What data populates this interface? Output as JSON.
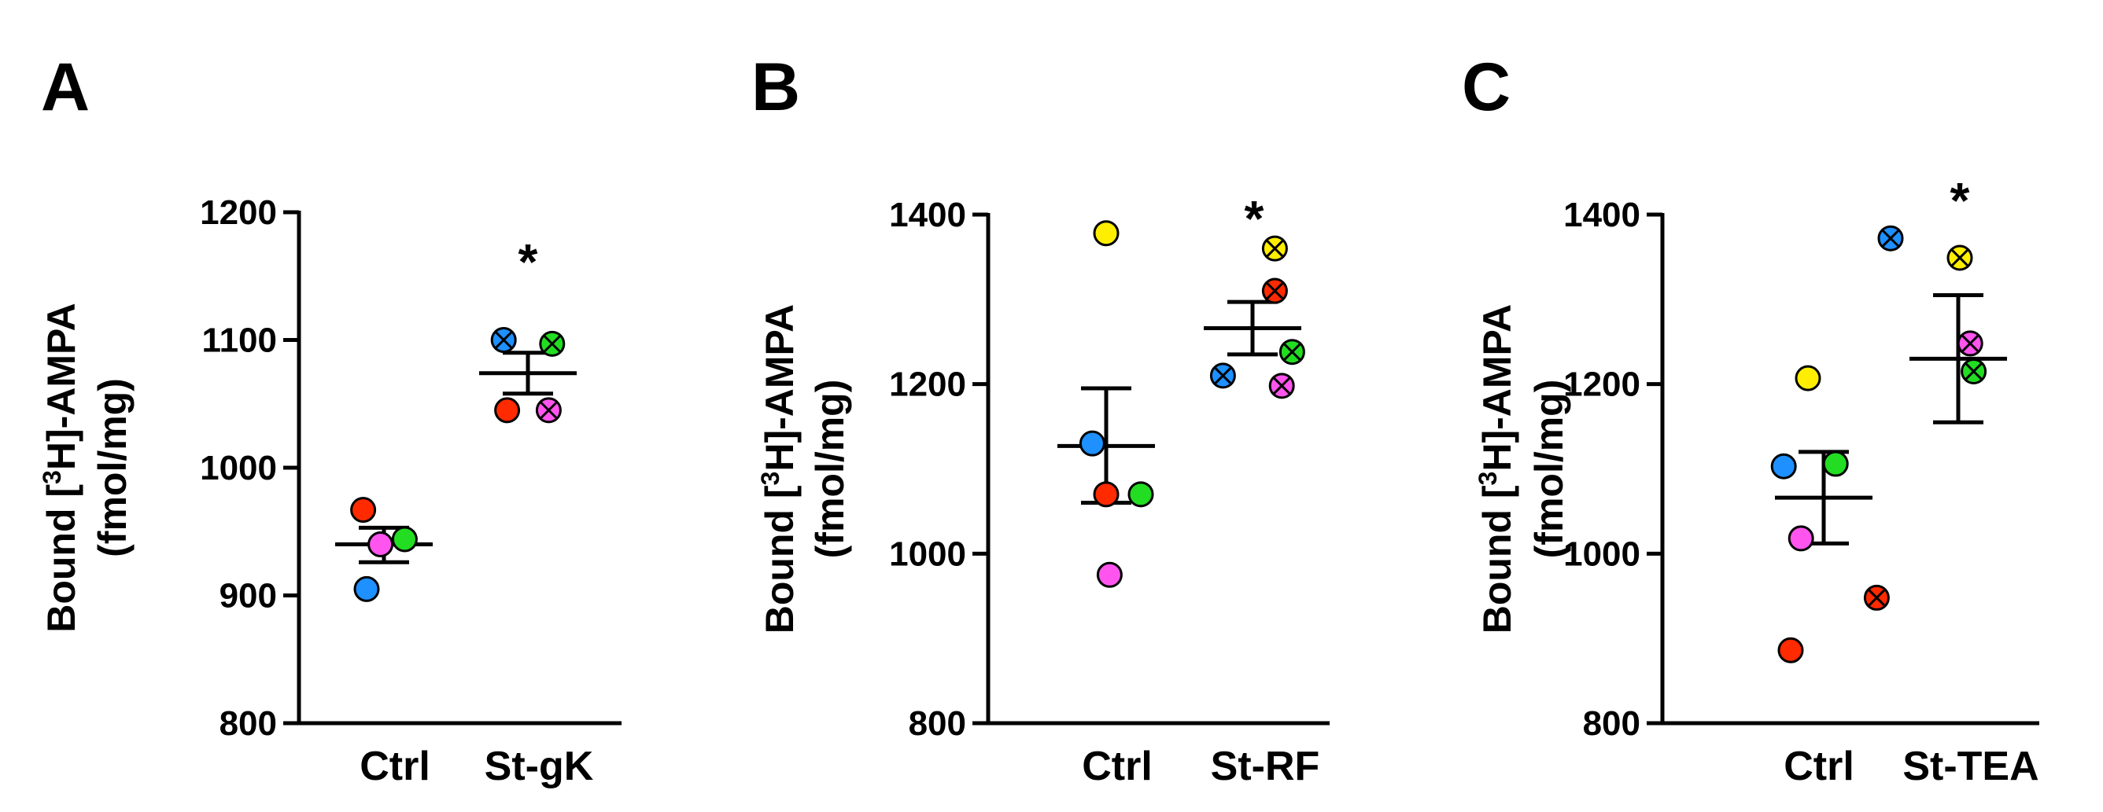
{
  "chart_data": [
    {
      "type": "scatter",
      "panel": "A",
      "ylabel_line1": "Bound [3H]-AMPA",
      "ylabel_line2": "(fmol/mg)",
      "ylim": [
        800,
        1200
      ],
      "yticks": [
        800,
        900,
        1000,
        1100,
        1200
      ],
      "categories": [
        "Ctrl",
        "St-gK"
      ],
      "significance": [
        "",
        "*"
      ],
      "summary": [
        {
          "mean": 940,
          "sem_low": 926,
          "sem_high": 953
        },
        {
          "mean": 1074,
          "sem_low": 1058,
          "sem_high": 1090
        }
      ],
      "points": [
        {
          "group": 0,
          "value": 967,
          "color": "#ff2a00",
          "crossed": false
        },
        {
          "group": 0,
          "value": 944,
          "color": "#22dd22",
          "crossed": false
        },
        {
          "group": 0,
          "value": 940,
          "color": "#ff55ee",
          "crossed": false
        },
        {
          "group": 0,
          "value": 905,
          "color": "#1e90ff",
          "crossed": false
        },
        {
          "group": 1,
          "value": 1100,
          "color": "#1e90ff",
          "crossed": true
        },
        {
          "group": 1,
          "value": 1097,
          "color": "#22dd22",
          "crossed": true
        },
        {
          "group": 1,
          "value": 1045,
          "color": "#ff2a00",
          "crossed": false
        },
        {
          "group": 1,
          "value": 1045,
          "color": "#ff55ee",
          "crossed": true
        }
      ]
    },
    {
      "type": "scatter",
      "panel": "B",
      "ylabel_line1": "Bound [3H]-AMPA",
      "ylabel_line2": "(fmol/mg)",
      "ylim": [
        800,
        1400
      ],
      "yticks": [
        800,
        1000,
        1200,
        1400
      ],
      "categories": [
        "Ctrl",
        "St-RF"
      ],
      "significance": [
        "",
        "*"
      ],
      "summary": [
        {
          "mean": 1127,
          "sem_low": 1060,
          "sem_high": 1195
        },
        {
          "mean": 1266,
          "sem_low": 1235,
          "sem_high": 1297
        }
      ],
      "points": [
        {
          "group": 0,
          "value": 1378,
          "color": "#ffee00",
          "crossed": false
        },
        {
          "group": 0,
          "value": 1130,
          "color": "#1e90ff",
          "crossed": false
        },
        {
          "group": 0,
          "value": 1070,
          "color": "#ff2a00",
          "crossed": false
        },
        {
          "group": 0,
          "value": 1070,
          "color": "#22dd22",
          "crossed": false
        },
        {
          "group": 0,
          "value": 975,
          "color": "#ff55ee",
          "crossed": false
        },
        {
          "group": 1,
          "value": 1360,
          "color": "#ffee00",
          "crossed": true
        },
        {
          "group": 1,
          "value": 1310,
          "color": "#ff2a00",
          "crossed": true
        },
        {
          "group": 1,
          "value": 1238,
          "color": "#22dd22",
          "crossed": true
        },
        {
          "group": 1,
          "value": 1210,
          "color": "#1e90ff",
          "crossed": true
        },
        {
          "group": 1,
          "value": 1198,
          "color": "#ff55ee",
          "crossed": true
        }
      ]
    },
    {
      "type": "scatter",
      "panel": "C",
      "ylabel_line1": "Bound [3H]-AMPA",
      "ylabel_line2": "(fmol/mg)",
      "ylim": [
        800,
        1400
      ],
      "yticks": [
        800,
        1000,
        1200,
        1400
      ],
      "categories": [
        "Ctrl",
        "St-TEA"
      ],
      "significance": [
        "",
        "*"
      ],
      "summary": [
        {
          "mean": 1066,
          "sem_low": 1012,
          "sem_high": 1120
        },
        {
          "mean": 1230,
          "sem_low": 1155,
          "sem_high": 1305
        }
      ],
      "points": [
        {
          "group": 0,
          "value": 1207,
          "color": "#ffee00",
          "crossed": false
        },
        {
          "group": 0,
          "value": 1103,
          "color": "#1e90ff",
          "crossed": false
        },
        {
          "group": 0,
          "value": 1106,
          "color": "#22dd22",
          "crossed": false
        },
        {
          "group": 0,
          "value": 1018,
          "color": "#ff55ee",
          "crossed": false
        },
        {
          "group": 0,
          "value": 886,
          "color": "#ff2a00",
          "crossed": false
        },
        {
          "group": 1,
          "value": 1372,
          "color": "#1e90ff",
          "crossed": true
        },
        {
          "group": 1,
          "value": 1349,
          "color": "#ffee00",
          "crossed": true
        },
        {
          "group": 1,
          "value": 1248,
          "color": "#ff55ee",
          "crossed": true
        },
        {
          "group": 1,
          "value": 1215,
          "color": "#22dd22",
          "crossed": true
        },
        {
          "group": 1,
          "value": 948,
          "color": "#ff2a00",
          "crossed": true
        }
      ]
    }
  ]
}
